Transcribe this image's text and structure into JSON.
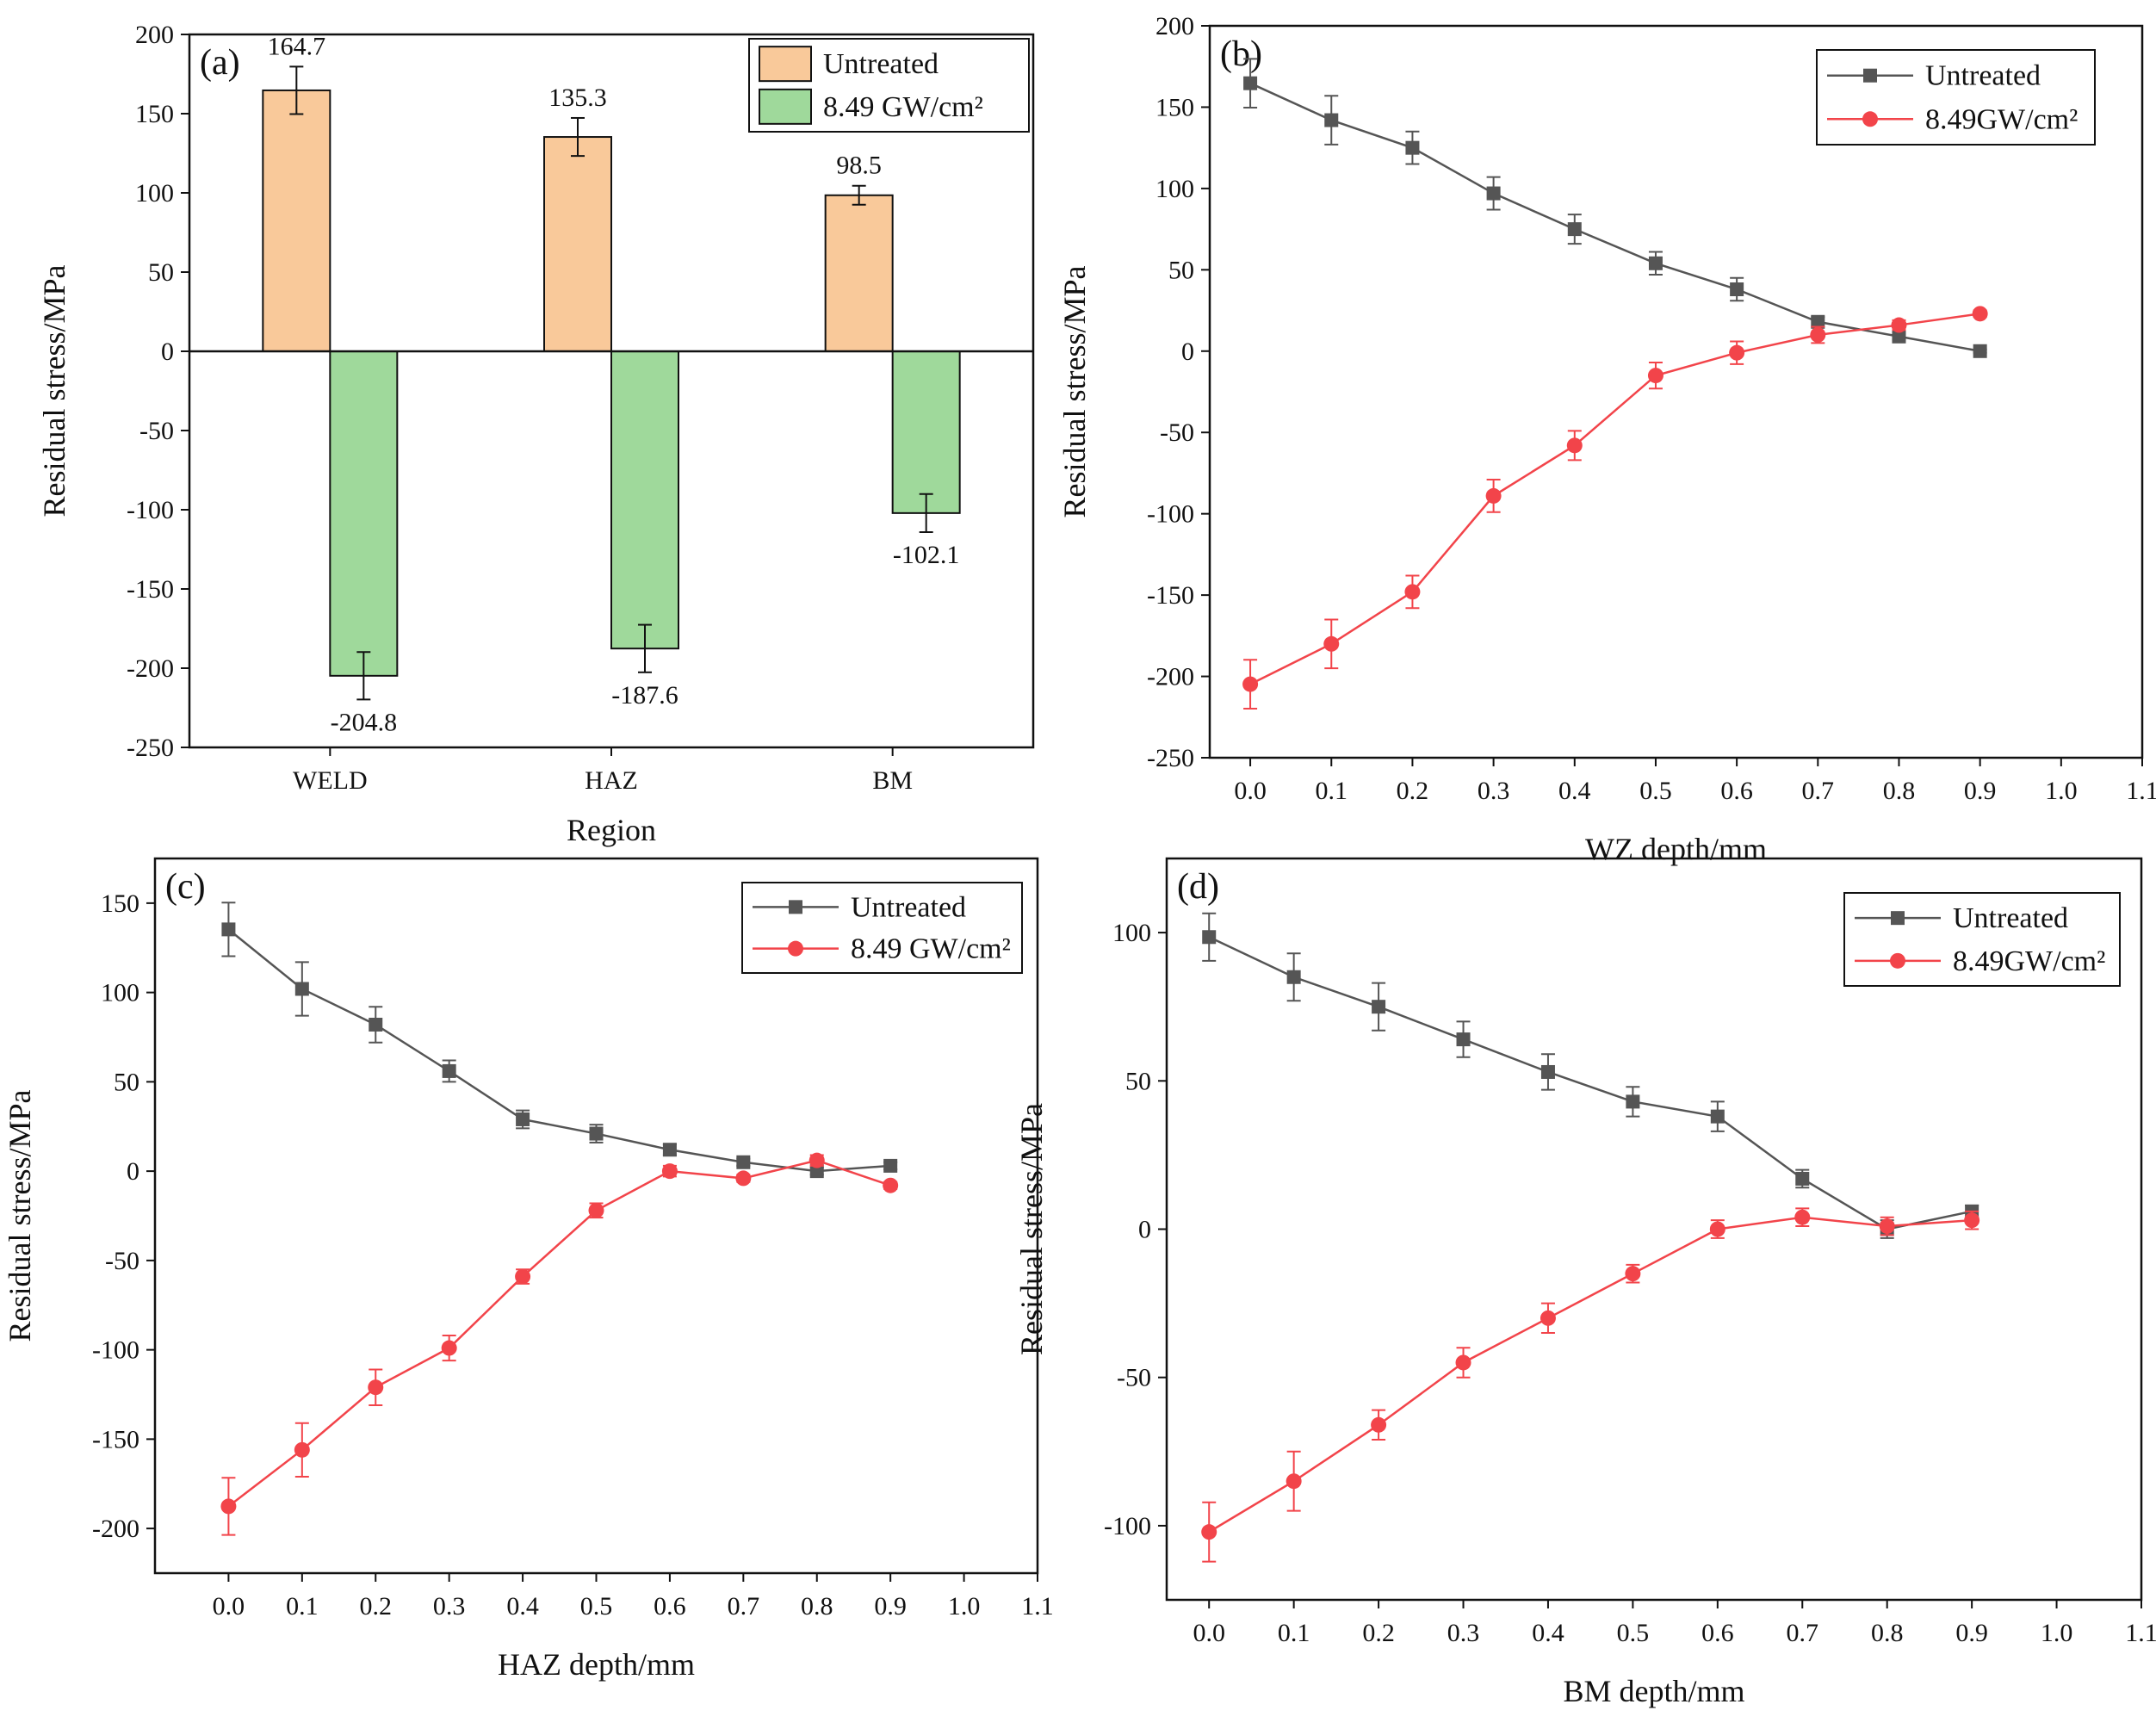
{
  "colors": {
    "untreated_bar": "#F9C99A",
    "treated_bar": "#9FD99B",
    "untreated_line": "#555555",
    "treated_line": "#F2444A",
    "axis": "#111111"
  },
  "chart_data": [
    {
      "type": "bar",
      "panel_label": "(a)",
      "categories": [
        "WELD",
        "HAZ",
        "BM"
      ],
      "xlabel": "Region",
      "ylabel": "Residual stress/MPa",
      "ylim": [
        -250,
        200
      ],
      "yticks": [
        -250,
        -200,
        -150,
        -100,
        -50,
        0,
        50,
        100,
        150,
        200
      ],
      "legend_position": "top-right",
      "series": [
        {
          "name": "Untreated",
          "values": [
            164.7,
            135.3,
            98.5
          ],
          "errors": [
            15,
            12,
            6
          ],
          "labels": [
            "164.7",
            "135.3",
            "98.5"
          ]
        },
        {
          "name": "8.49 GW/cm²",
          "values": [
            -204.8,
            -187.6,
            -102.1
          ],
          "errors": [
            15,
            15,
            12
          ],
          "labels": [
            "-204.8",
            "-187.6",
            "-102.1"
          ]
        }
      ]
    },
    {
      "type": "line",
      "panel_label": "(b)",
      "xlabel": "WZ depth/mm",
      "ylabel": "Residual stress/MPa",
      "xlim": [
        -0.05,
        1.1
      ],
      "xticks": [
        0.0,
        0.1,
        0.2,
        0.3,
        0.4,
        0.5,
        0.6,
        0.7,
        0.8,
        0.9,
        1.0,
        1.1
      ],
      "ylim": [
        -250,
        200
      ],
      "yticks": [
        -250,
        -200,
        -150,
        -100,
        -50,
        0,
        50,
        100,
        150,
        200
      ],
      "legend_position": "top-right",
      "x": [
        0.0,
        0.1,
        0.2,
        0.3,
        0.4,
        0.5,
        0.6,
        0.7,
        0.8,
        0.9
      ],
      "series": [
        {
          "name": "Untreated",
          "values": [
            164.7,
            142,
            125,
            97,
            75,
            54,
            38,
            18,
            9,
            0
          ],
          "errors": [
            15,
            15,
            10,
            10,
            9,
            7,
            7,
            3,
            2,
            1
          ]
        },
        {
          "name": "8.49GW/cm²",
          "values": [
            -204.8,
            -180,
            -148,
            -89,
            -58,
            -15,
            -1,
            10,
            16,
            23
          ],
          "errors": [
            15,
            15,
            10,
            10,
            9,
            8,
            7,
            5,
            3,
            2
          ]
        }
      ]
    },
    {
      "type": "line",
      "panel_label": "(c)",
      "xlabel": "HAZ depth/mm",
      "ylabel": "Residual stress/MPa",
      "xlim": [
        -0.1,
        1.1
      ],
      "xticks": [
        0.0,
        0.1,
        0.2,
        0.3,
        0.4,
        0.5,
        0.6,
        0.7,
        0.8,
        0.9,
        1.0,
        1.1
      ],
      "ylim": [
        -225,
        175
      ],
      "yticks": [
        -200,
        -150,
        -100,
        -50,
        0,
        50,
        100,
        150
      ],
      "legend_position": "top-right",
      "x": [
        0.0,
        0.1,
        0.2,
        0.3,
        0.4,
        0.5,
        0.6,
        0.7,
        0.8,
        0.9
      ],
      "series": [
        {
          "name": "Untreated",
          "values": [
            135.3,
            102,
            82,
            56,
            29,
            21,
            12,
            5,
            0,
            3
          ],
          "errors": [
            15,
            15,
            10,
            6,
            5,
            5,
            3,
            2,
            2,
            2
          ]
        },
        {
          "name": "8.49 GW/cm²",
          "values": [
            -187.6,
            -156,
            -121,
            -99,
            -59,
            -22,
            0,
            -4,
            6,
            -8
          ],
          "errors": [
            16,
            15,
            10,
            7,
            4,
            4,
            3,
            2,
            3,
            2
          ]
        }
      ]
    },
    {
      "type": "line",
      "panel_label": "(d)",
      "xlabel": "BM depth/mm",
      "ylabel": "Residual stress/MPa",
      "xlim": [
        -0.05,
        1.1
      ],
      "xticks": [
        0.0,
        0.1,
        0.2,
        0.3,
        0.4,
        0.5,
        0.6,
        0.7,
        0.8,
        0.9,
        1.0,
        1.1
      ],
      "ylim": [
        -125,
        125
      ],
      "yticks": [
        -100,
        -50,
        0,
        50,
        100
      ],
      "legend_position": "top-right",
      "x": [
        0.0,
        0.1,
        0.2,
        0.3,
        0.4,
        0.5,
        0.6,
        0.7,
        0.8,
        0.9
      ],
      "series": [
        {
          "name": "Untreated",
          "values": [
            98.5,
            85,
            75,
            64,
            53,
            43,
            38,
            17,
            0,
            6
          ],
          "errors": [
            8,
            8,
            8,
            6,
            6,
            5,
            5,
            3,
            3,
            2
          ]
        },
        {
          "name": "8.49GW/cm²",
          "values": [
            -102.1,
            -85,
            -66,
            -45,
            -30,
            -15,
            0,
            4,
            1,
            3
          ],
          "errors": [
            10,
            10,
            5,
            5,
            5,
            3,
            3,
            3,
            3,
            3
          ]
        }
      ]
    }
  ]
}
